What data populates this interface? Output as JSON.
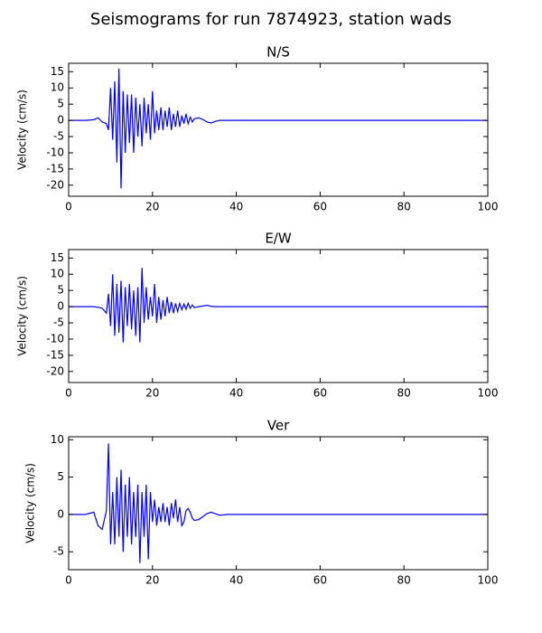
{
  "title": "Seismograms for run 7874923, station wads",
  "chart_data": [
    {
      "type": "line",
      "title": "N/S",
      "ylabel": "Velocity (cm/s)",
      "x": [
        0,
        4,
        6,
        7,
        8,
        9,
        9.5,
        10,
        10.5,
        11,
        11.5,
        12,
        12.5,
        13,
        13.5,
        14,
        14.5,
        15,
        15.5,
        16,
        16.5,
        17,
        17.5,
        18,
        18.5,
        19,
        19.5,
        20,
        20.5,
        21,
        21.5,
        22,
        22.5,
        23,
        23.5,
        24,
        24.5,
        25,
        25.5,
        26,
        26.5,
        27,
        27.5,
        28,
        28.5,
        29,
        29.5,
        30,
        31,
        32,
        33,
        34,
        35,
        36,
        38,
        40,
        60,
        80,
        100
      ],
      "series": [
        {
          "name": "N/S",
          "color": "#0000ff",
          "values": [
            0,
            0,
            0.2,
            0.8,
            -0.5,
            -1,
            -3,
            10,
            -6,
            12,
            -13,
            16,
            -21,
            9,
            -10,
            8,
            -7,
            8,
            -10,
            7,
            -5,
            5,
            -8,
            7,
            -4,
            5,
            -6,
            9,
            -4,
            3,
            -3,
            4,
            -3,
            3,
            -2,
            4,
            -3,
            2,
            -2,
            3,
            -2,
            1.5,
            -1,
            2,
            -1,
            1,
            -0.5,
            0.5,
            0.8,
            0.3,
            -0.5,
            -0.8,
            -0.3,
            0,
            0,
            0,
            0,
            0,
            0
          ]
        }
      ],
      "xlim": [
        0,
        100
      ],
      "xticks": [
        0,
        20,
        40,
        60,
        80,
        100
      ],
      "ylim": [
        -23.4,
        17.6
      ],
      "yticks": [
        15,
        10,
        5,
        0,
        -5,
        -10,
        -15,
        -20
      ]
    },
    {
      "type": "line",
      "title": "E/W",
      "ylabel": "Velocity (cm/s)",
      "x": [
        0,
        4,
        6,
        7,
        8,
        9,
        9.5,
        10,
        10.5,
        11,
        11.5,
        12,
        12.5,
        13,
        13.5,
        14,
        14.5,
        15,
        15.5,
        16,
        16.5,
        17,
        17.5,
        18,
        18.5,
        19,
        19.5,
        20,
        20.5,
        21,
        21.5,
        22,
        22.5,
        23,
        23.5,
        24,
        24.5,
        25,
        25.5,
        26,
        26.5,
        27,
        27.5,
        28,
        28.5,
        29,
        29.5,
        30,
        31,
        32,
        33,
        34,
        35,
        36,
        38,
        40,
        60,
        80,
        100
      ],
      "series": [
        {
          "name": "E/W",
          "color": "#0000ff",
          "values": [
            0,
            0,
            0,
            -0.2,
            -0.5,
            -2,
            4,
            -6,
            10,
            -9,
            7,
            -8,
            8,
            -11,
            6,
            -6,
            7,
            -7,
            5,
            -9,
            6,
            -11,
            12,
            -5,
            6,
            -4,
            3,
            -3,
            7,
            -5,
            3,
            -4,
            2,
            -3,
            3,
            -2,
            1.5,
            -2,
            1,
            -1.5,
            1,
            -1,
            0.8,
            -0.8,
            1,
            -0.5,
            0.5,
            -0.3,
            0,
            0.2,
            0.4,
            0.1,
            0,
            0,
            0,
            0,
            0,
            0,
            0
          ]
        }
      ],
      "xlim": [
        0,
        100
      ],
      "xticks": [
        0,
        20,
        40,
        60,
        80,
        100
      ],
      "ylim": [
        -23.4,
        17.6
      ],
      "yticks": [
        15,
        10,
        5,
        0,
        -5,
        -10,
        -15,
        -20
      ]
    },
    {
      "type": "line",
      "title": "Ver",
      "ylabel": "Velocity (cm/s)",
      "x": [
        0,
        4,
        6,
        7,
        8,
        9,
        9.5,
        10,
        10.5,
        11,
        11.5,
        12,
        12.5,
        13,
        13.5,
        14,
        14.5,
        15,
        15.5,
        16,
        16.5,
        17,
        17.5,
        18,
        18.5,
        19,
        19.5,
        20,
        20.5,
        21,
        21.5,
        22,
        22.5,
        23,
        23.5,
        24,
        24.5,
        25,
        25.5,
        26,
        26.5,
        27,
        27.5,
        28,
        28.5,
        29,
        29.5,
        30,
        31,
        32,
        33,
        34,
        35,
        36,
        38,
        40,
        60,
        80,
        100
      ],
      "series": [
        {
          "name": "Ver",
          "color": "#0000ff",
          "values": [
            0,
            0,
            0.3,
            -1.5,
            -2,
            0.5,
            9.5,
            -4,
            3,
            -4,
            5,
            -3,
            6,
            -5,
            4,
            -3,
            5,
            -4,
            3,
            -3,
            4,
            -6.5,
            3,
            -3,
            4,
            -6,
            3,
            -1,
            2,
            -1.5,
            1,
            -1,
            1.5,
            -1,
            1,
            -1.5,
            1.5,
            -0.5,
            2,
            -1,
            1,
            -1.5,
            -1,
            0.5,
            0.8,
            0.3,
            -0.5,
            -0.8,
            -0.7,
            -0.3,
            0.1,
            0.3,
            0.1,
            -0.1,
            0,
            0,
            0,
            0,
            0
          ]
        }
      ],
      "xlim": [
        0,
        100
      ],
      "xticks": [
        0,
        20,
        40,
        60,
        80,
        100
      ],
      "ylim": [
        -7.4,
        10.4
      ],
      "yticks": [
        10,
        5,
        0,
        -5
      ]
    }
  ]
}
